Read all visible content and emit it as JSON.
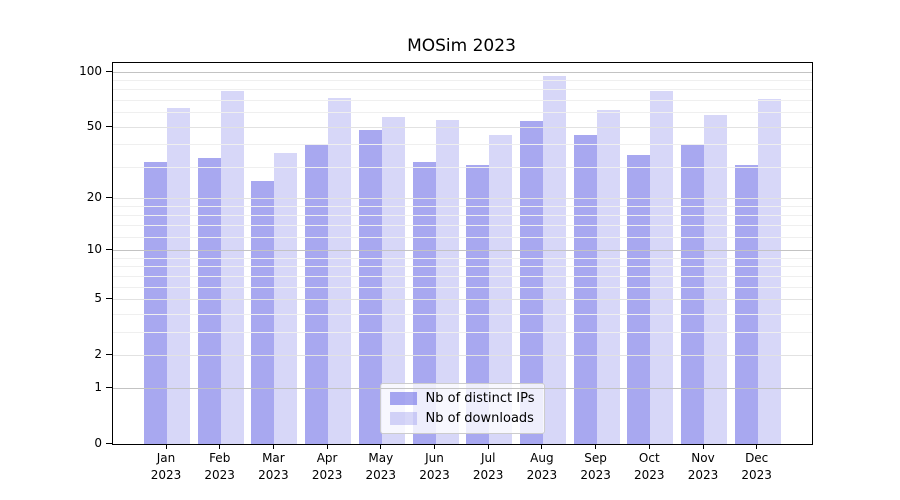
{
  "chart_data": {
    "type": "bar",
    "title": "MOSim 2023",
    "yscale": "log1p",
    "grid": true,
    "legend_position": "lower center",
    "x_tick_year": "2023",
    "categories": [
      "Jan",
      "Feb",
      "Mar",
      "Apr",
      "May",
      "Jun",
      "Jul",
      "Aug",
      "Sep",
      "Oct",
      "Nov",
      "Dec"
    ],
    "series": [
      {
        "name": "Nb of distinct IPs",
        "color": "rgba(97,97,228,0.55)",
        "values": [
          32,
          34,
          25,
          40,
          48,
          32,
          31,
          54,
          45,
          35,
          40,
          31
        ]
      },
      {
        "name": "Nb of downloads",
        "color": "rgba(97,97,228,0.25)",
        "values": [
          64,
          79,
          36,
          72,
          57,
          55,
          45,
          95,
          62,
          79,
          58,
          71
        ]
      }
    ],
    "yticks": [
      100,
      50,
      20,
      10,
      5,
      2,
      1,
      0
    ],
    "minor_yticks": [
      3,
      4,
      6,
      7,
      8,
      9,
      12,
      14,
      16,
      18,
      30,
      40,
      60,
      70,
      80,
      90
    ],
    "major_grid_yticks": [
      1,
      10,
      100
    ],
    "ylim": [
      0,
      112
    ]
  }
}
